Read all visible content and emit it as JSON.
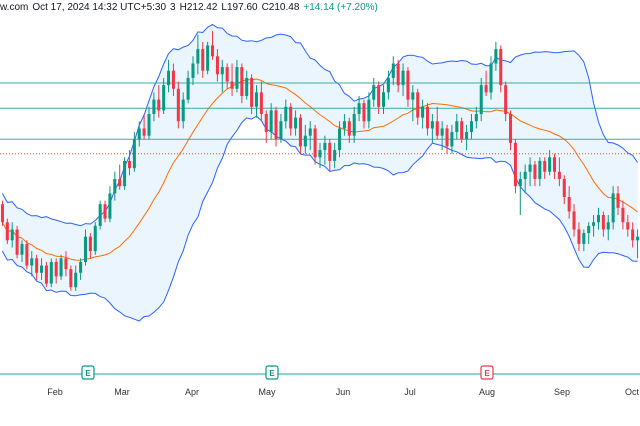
{
  "header": {
    "source": "w.com",
    "datetime": "Oct 17, 2024 14:32 UTC+5:30",
    "open_tail": "3",
    "high": "H212.42",
    "low": "L197.60",
    "close": "C210.48",
    "change": "+14.14 (+7.20%)"
  },
  "colors": {
    "up": "#089981",
    "down": "#f23645",
    "band": "#2962ff",
    "band_fill": "#e3f2fd",
    "basis": "#ff6d00",
    "hline": "#26a69a"
  },
  "chart_data": {
    "type": "candlestick",
    "overlay": "bollinger_bands",
    "x_tick_labels": [
      "Feb",
      "Mar",
      "Apr",
      "May",
      "Jun",
      "Jul",
      "Aug",
      "Sep",
      "Oct"
    ],
    "event_markers": [
      {
        "label": "E",
        "kind": "earnings",
        "month": "Feb"
      },
      {
        "label": "E",
        "kind": "earnings",
        "month": "May"
      },
      {
        "label": "E",
        "kind": "earnings",
        "month": "Aug"
      }
    ],
    "horizontal_levels": [
      208.6,
      201.6,
      193.0
    ],
    "dotted_level": 189.0,
    "ylim": [
      128.5,
      225.5
    ],
    "candles": [
      [
        175,
        176,
        169,
        170
      ],
      [
        170,
        171,
        164,
        165
      ],
      [
        165,
        170,
        163,
        168
      ],
      [
        168,
        169,
        160,
        161
      ],
      [
        161,
        165,
        159,
        164
      ],
      [
        164,
        165,
        157,
        158
      ],
      [
        158,
        162,
        155,
        160
      ],
      [
        160,
        161,
        154,
        156
      ],
      [
        156,
        160,
        154,
        158
      ],
      [
        158,
        159,
        152,
        153
      ],
      [
        153,
        160,
        152,
        159
      ],
      [
        159,
        160,
        153,
        155
      ],
      [
        155,
        161,
        154,
        160
      ],
      [
        160,
        162,
        155,
        157
      ],
      [
        157,
        158,
        151,
        152
      ],
      [
        152,
        158,
        151,
        156
      ],
      [
        156,
        160,
        154,
        159
      ],
      [
        159,
        168,
        158,
        166
      ],
      [
        166,
        167,
        160,
        162
      ],
      [
        162,
        170,
        161,
        169
      ],
      [
        169,
        176,
        168,
        175
      ],
      [
        175,
        176,
        170,
        171
      ],
      [
        171,
        180,
        170,
        178
      ],
      [
        178,
        184,
        176,
        182
      ],
      [
        182,
        186,
        179,
        180
      ],
      [
        180,
        188,
        179,
        187
      ],
      [
        187,
        190,
        183,
        185
      ],
      [
        185,
        195,
        184,
        193
      ],
      [
        193,
        198,
        191,
        196
      ],
      [
        196,
        200,
        193,
        194
      ],
      [
        194,
        202,
        193,
        200
      ],
      [
        200,
        206,
        198,
        204
      ],
      [
        204,
        208,
        199,
        201
      ],
      [
        201,
        210,
        200,
        208
      ],
      [
        208,
        215,
        206,
        212
      ],
      [
        212,
        214,
        205,
        207
      ],
      [
        207,
        209,
        196,
        198
      ],
      [
        198,
        206,
        196,
        204
      ],
      [
        204,
        212,
        203,
        210
      ],
      [
        210,
        216,
        208,
        214
      ],
      [
        214,
        222,
        211,
        218
      ],
      [
        218,
        220,
        210,
        212
      ],
      [
        212,
        220,
        211,
        219
      ],
      [
        219,
        223,
        215,
        216
      ],
      [
        216,
        218,
        209,
        211
      ],
      [
        211,
        215,
        206,
        213
      ],
      [
        213,
        214,
        207,
        209
      ],
      [
        209,
        214,
        205,
        207
      ],
      [
        207,
        215,
        206,
        213
      ],
      [
        213,
        214,
        203,
        205
      ],
      [
        205,
        212,
        204,
        210
      ],
      [
        210,
        211,
        200,
        202
      ],
      [
        202,
        208,
        199,
        206
      ],
      [
        206,
        209,
        198,
        200
      ],
      [
        200,
        201,
        192,
        195
      ],
      [
        195,
        203,
        193,
        201
      ],
      [
        201,
        202,
        191,
        193
      ],
      [
        193,
        200,
        192,
        198
      ],
      [
        198,
        204,
        196,
        202
      ],
      [
        202,
        203,
        194,
        196
      ],
      [
        196,
        201,
        194,
        199
      ],
      [
        199,
        200,
        189,
        191
      ],
      [
        191,
        197,
        189,
        194
      ],
      [
        194,
        198,
        190,
        196
      ],
      [
        196,
        197,
        186,
        188
      ],
      [
        188,
        192,
        185,
        190
      ],
      [
        190,
        194,
        186,
        192
      ],
      [
        192,
        193,
        184,
        187
      ],
      [
        187,
        192,
        185,
        190
      ],
      [
        190,
        198,
        188,
        196
      ],
      [
        196,
        200,
        194,
        198
      ],
      [
        198,
        199,
        192,
        194
      ],
      [
        194,
        202,
        192,
        200
      ],
      [
        200,
        205,
        198,
        203
      ],
      [
        203,
        204,
        196,
        198
      ],
      [
        198,
        206,
        196,
        204
      ],
      [
        204,
        210,
        202,
        208
      ],
      [
        208,
        209,
        200,
        202
      ],
      [
        202,
        208,
        200,
        206
      ],
      [
        206,
        212,
        204,
        210
      ],
      [
        210,
        216,
        208,
        214
      ],
      [
        214,
        215,
        206,
        208
      ],
      [
        208,
        214,
        205,
        212
      ],
      [
        212,
        213,
        202,
        204
      ],
      [
        204,
        208,
        198,
        206
      ],
      [
        206,
        207,
        197,
        199
      ],
      [
        199,
        204,
        196,
        202
      ],
      [
        202,
        203,
        194,
        196
      ],
      [
        196,
        200,
        192,
        198
      ],
      [
        198,
        202,
        193,
        194
      ],
      [
        194,
        198,
        190,
        196
      ],
      [
        196,
        197,
        189,
        191
      ],
      [
        191,
        197,
        189,
        195
      ],
      [
        195,
        200,
        193,
        198
      ],
      [
        198,
        199,
        192,
        193
      ],
      [
        193,
        197,
        190,
        195
      ],
      [
        195,
        200,
        193,
        198
      ],
      [
        198,
        202,
        196,
        200
      ],
      [
        200,
        210,
        198,
        208
      ],
      [
        208,
        212,
        205,
        206
      ],
      [
        206,
        216,
        204,
        214
      ],
      [
        214,
        220,
        212,
        218
      ],
      [
        218,
        219,
        206,
        208
      ],
      [
        208,
        209,
        198,
        200
      ],
      [
        200,
        201,
        190,
        192
      ],
      [
        192,
        193,
        178,
        180
      ],
      [
        180,
        184,
        172,
        182
      ],
      [
        182,
        186,
        178,
        184
      ],
      [
        184,
        188,
        180,
        186
      ],
      [
        186,
        187,
        180,
        182
      ],
      [
        182,
        188,
        180,
        187
      ],
      [
        187,
        188,
        182,
        184
      ],
      [
        184,
        190,
        183,
        188
      ],
      [
        188,
        189,
        182,
        184
      ],
      [
        184,
        188,
        180,
        182
      ],
      [
        182,
        183,
        175,
        177
      ],
      [
        177,
        180,
        171,
        173
      ],
      [
        173,
        175,
        166,
        168
      ],
      [
        168,
        170,
        162,
        164
      ],
      [
        164,
        168,
        162,
        167
      ],
      [
        167,
        170,
        164,
        169
      ],
      [
        169,
        172,
        166,
        170
      ],
      [
        170,
        174,
        168,
        172
      ],
      [
        172,
        173,
        166,
        168
      ],
      [
        168,
        172,
        165,
        170
      ],
      [
        170,
        180,
        168,
        178
      ],
      [
        178,
        180,
        172,
        174
      ],
      [
        174,
        176,
        168,
        170
      ],
      [
        170,
        172,
        166,
        168
      ],
      [
        168,
        170,
        163,
        165
      ],
      [
        165,
        168,
        160,
        166
      ]
    ]
  }
}
